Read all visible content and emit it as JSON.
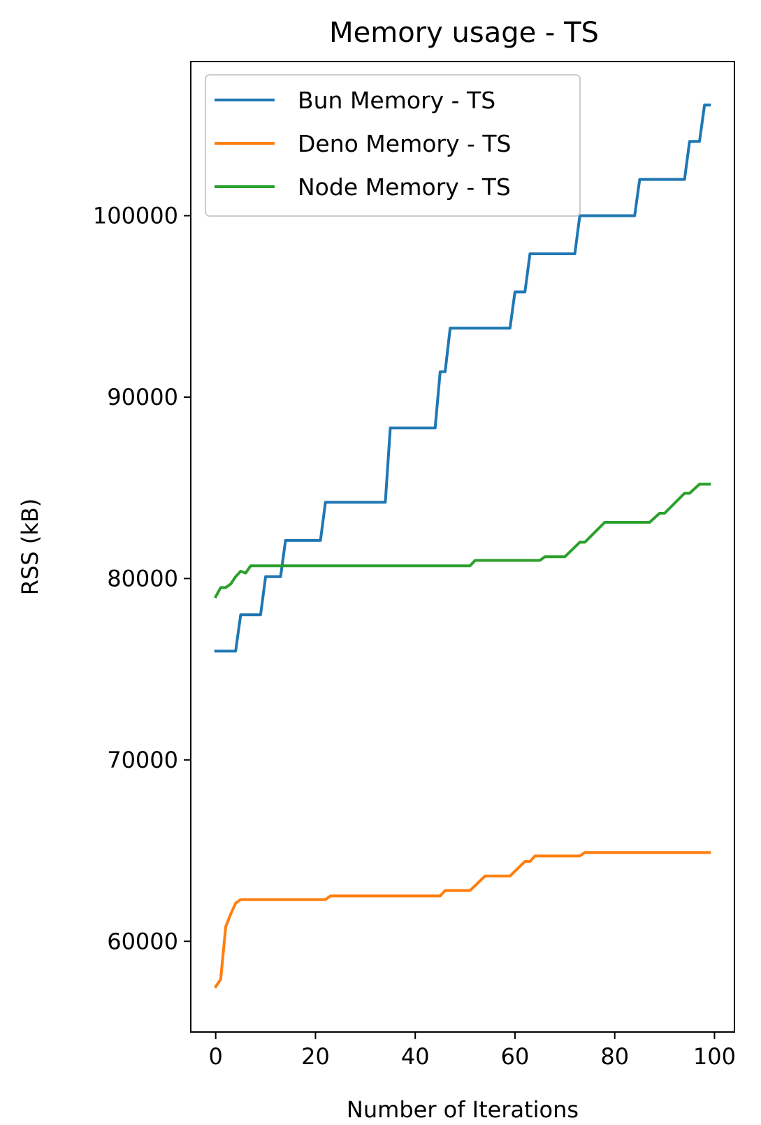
{
  "chart_data": {
    "type": "line",
    "title": "Memory usage - TS",
    "xlabel": "Number of Iterations",
    "ylabel": "RSS (kB)",
    "xlim": [
      -5,
      104
    ],
    "ylim": [
      55000,
      108500
    ],
    "xticks": [
      0,
      20,
      40,
      60,
      80,
      100
    ],
    "yticks": [
      60000,
      70000,
      80000,
      90000,
      100000
    ],
    "xtick_labels": [
      "0",
      "20",
      "40",
      "60",
      "80",
      "100"
    ],
    "ytick_labels": [
      "60000",
      "70000",
      "80000",
      "90000",
      "100000"
    ],
    "grid": false,
    "legend_position": "top-left",
    "series": [
      {
        "name": "Bun Memory - TS",
        "color": "#1f77b4",
        "points": [
          [
            0,
            76000
          ],
          [
            4,
            76000
          ],
          [
            5,
            78000
          ],
          [
            9,
            78000
          ],
          [
            10,
            80100
          ],
          [
            13,
            80100
          ],
          [
            14,
            82100
          ],
          [
            21,
            82100
          ],
          [
            22,
            84200
          ],
          [
            34,
            84200
          ],
          [
            35,
            88300
          ],
          [
            44,
            88300
          ],
          [
            45,
            91400
          ],
          [
            46,
            91400
          ],
          [
            47,
            93800
          ],
          [
            59,
            93800
          ],
          [
            60,
            95800
          ],
          [
            62,
            95800
          ],
          [
            63,
            97900
          ],
          [
            72,
            97900
          ],
          [
            73,
            100000
          ],
          [
            84,
            100000
          ],
          [
            85,
            102000
          ],
          [
            94,
            102000
          ],
          [
            95,
            104100
          ],
          [
            97,
            104100
          ],
          [
            98,
            106100
          ],
          [
            99,
            106100
          ]
        ]
      },
      {
        "name": "Deno Memory - TS",
        "color": "#ff7f0e",
        "points": [
          [
            0,
            57500
          ],
          [
            1,
            57900
          ],
          [
            2,
            60800
          ],
          [
            3,
            61500
          ],
          [
            4,
            62100
          ],
          [
            5,
            62300
          ],
          [
            22,
            62300
          ],
          [
            23,
            62500
          ],
          [
            45,
            62500
          ],
          [
            46,
            62800
          ],
          [
            51,
            62800
          ],
          [
            54,
            63600
          ],
          [
            59,
            63600
          ],
          [
            62,
            64400
          ],
          [
            63,
            64400
          ],
          [
            64,
            64700
          ],
          [
            73,
            64700
          ],
          [
            74,
            64900
          ],
          [
            99,
            64900
          ]
        ]
      },
      {
        "name": "Node Memory - TS",
        "color": "#2ca02c",
        "points": [
          [
            0,
            79000
          ],
          [
            1,
            79500
          ],
          [
            2,
            79500
          ],
          [
            3,
            79700
          ],
          [
            4,
            80100
          ],
          [
            5,
            80400
          ],
          [
            6,
            80300
          ],
          [
            7,
            80700
          ],
          [
            51,
            80700
          ],
          [
            52,
            81000
          ],
          [
            65,
            81000
          ],
          [
            66,
            81200
          ],
          [
            70,
            81200
          ],
          [
            73,
            82000
          ],
          [
            74,
            82000
          ],
          [
            78,
            83100
          ],
          [
            87,
            83100
          ],
          [
            89,
            83600
          ],
          [
            90,
            83600
          ],
          [
            94,
            84700
          ],
          [
            95,
            84700
          ],
          [
            97,
            85200
          ],
          [
            99,
            85200
          ]
        ]
      }
    ]
  }
}
